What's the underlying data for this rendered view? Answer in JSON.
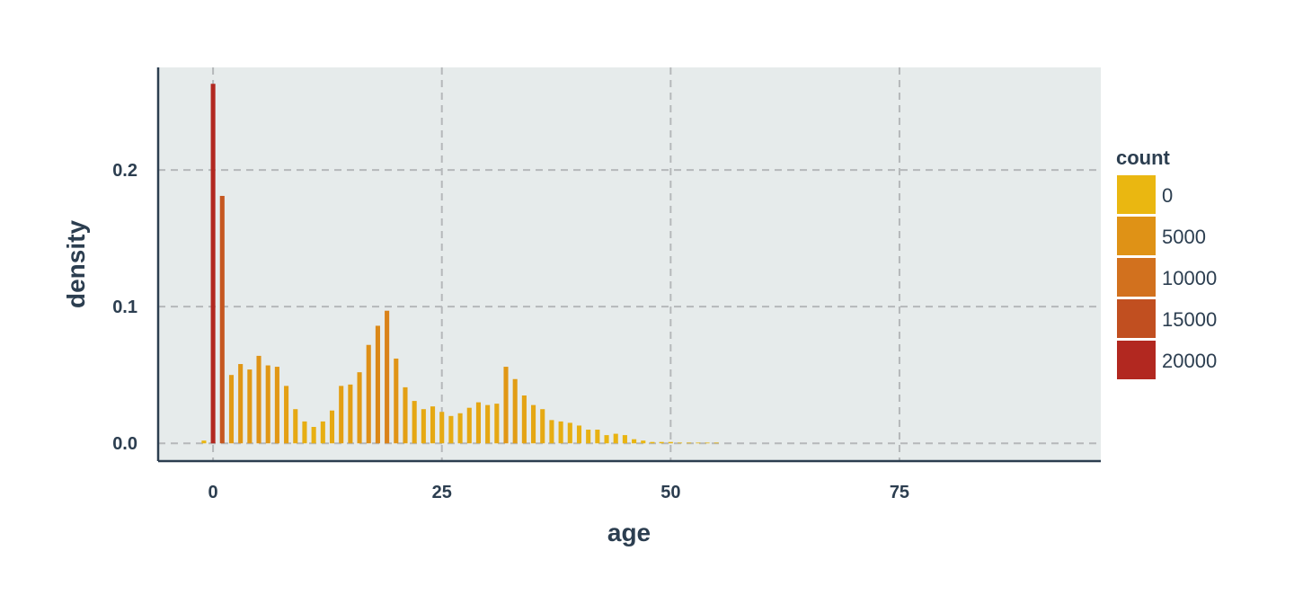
{
  "chart_data": {
    "type": "bar",
    "title": "",
    "xlabel": "age",
    "ylabel": "density",
    "xlim": [
      -6,
      97
    ],
    "ylim": [
      -0.013,
      0.275
    ],
    "x_ticks": [
      0,
      25,
      50,
      75
    ],
    "x_tick_labels": [
      "0",
      "25",
      "50",
      "75"
    ],
    "y_ticks": [
      0.0,
      0.1,
      0.2
    ],
    "y_tick_labels": [
      "0.0",
      "0.1",
      "0.2"
    ],
    "grid": true,
    "background": "#e6ebeb",
    "grid_color": "#b5b8ba",
    "axis_color": "#2c3e50",
    "text_color": "#2c3e50",
    "bin_width": 1,
    "x": [
      -1,
      0,
      1,
      2,
      3,
      4,
      5,
      6,
      7,
      8,
      9,
      10,
      11,
      12,
      13,
      14,
      15,
      16,
      17,
      18,
      19,
      20,
      21,
      22,
      23,
      24,
      25,
      26,
      27,
      28,
      29,
      30,
      31,
      32,
      33,
      34,
      35,
      36,
      37,
      38,
      39,
      40,
      41,
      42,
      43,
      44,
      45,
      46,
      47,
      48,
      49,
      50,
      51,
      52,
      53,
      54,
      55
    ],
    "values": [
      0.002,
      0.263,
      0.181,
      0.05,
      0.058,
      0.054,
      0.064,
      0.057,
      0.056,
      0.042,
      0.025,
      0.016,
      0.012,
      0.016,
      0.024,
      0.042,
      0.043,
      0.052,
      0.072,
      0.086,
      0.097,
      0.062,
      0.041,
      0.031,
      0.025,
      0.027,
      0.023,
      0.02,
      0.022,
      0.026,
      0.03,
      0.028,
      0.029,
      0.056,
      0.047,
      0.035,
      0.028,
      0.025,
      0.017,
      0.016,
      0.015,
      0.013,
      0.01,
      0.01,
      0.006,
      0.007,
      0.006,
      0.003,
      0.002,
      0.001,
      0.001,
      0.001,
      0.0005,
      0.0005,
      0.0004,
      0.0004,
      0.0003
    ],
    "legend": {
      "title": "count",
      "placement": "right",
      "entries": [
        {
          "label": "0",
          "color": "#eab711"
        },
        {
          "label": "5000",
          "color": "#df9216"
        },
        {
          "label": "10000",
          "color": "#d2711e"
        },
        {
          "label": "15000",
          "color": "#c14f20"
        },
        {
          "label": "20000",
          "color": "#b22820"
        }
      ]
    }
  }
}
